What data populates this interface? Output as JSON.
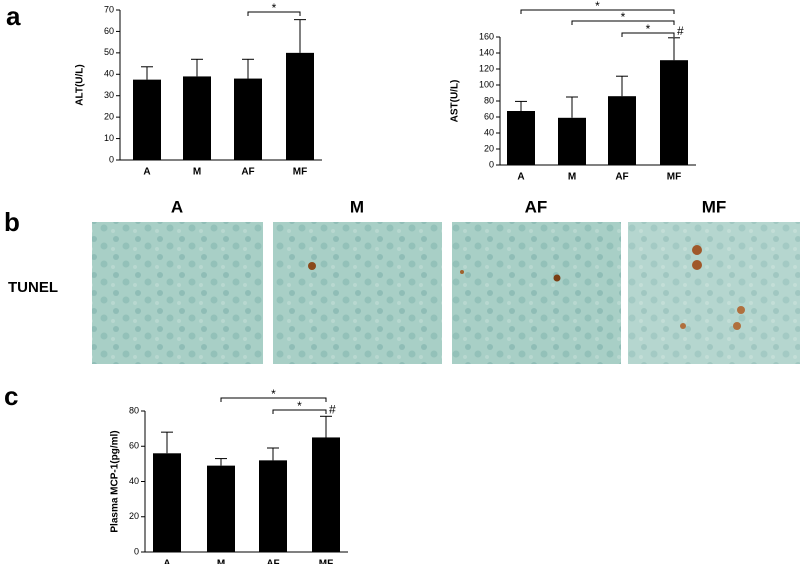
{
  "panels": [
    "a",
    "b",
    "c"
  ],
  "tunel_label": "TUNEL",
  "image_titles": [
    "A",
    "M",
    "AF",
    "MF"
  ],
  "chart_data": [
    {
      "type": "bar",
      "ylabel": "ALT(U/L)",
      "categories": [
        "A",
        "M",
        "AF",
        "MF"
      ],
      "values": [
        37.5,
        39,
        38,
        50
      ],
      "errors": [
        6,
        8,
        9,
        15.5
      ],
      "color": "#000000",
      "ylim": [
        0,
        70
      ],
      "yticks": [
        0,
        10,
        20,
        30,
        40,
        50,
        60,
        70
      ],
      "annotations": [
        "*"
      ]
    },
    {
      "type": "bar",
      "ylabel": "AST(U/L)",
      "categories": [
        "A",
        "M",
        "AF",
        "MF"
      ],
      "values": [
        67.5,
        59,
        86,
        131
      ],
      "errors": [
        12,
        26,
        25,
        28
      ],
      "color": "#000000",
      "ylim": [
        0,
        160
      ],
      "yticks": [
        0,
        20,
        40,
        60,
        80,
        100,
        120,
        140,
        160
      ],
      "annotations": [
        "*",
        "*",
        "*",
        "#"
      ]
    },
    {
      "type": "bar",
      "ylabel": "Plasma MCP-1(pg/ml)",
      "categories": [
        "A",
        "M",
        "AF",
        "MF"
      ],
      "values": [
        56,
        49,
        52,
        65
      ],
      "errors": [
        12,
        4,
        7,
        12
      ],
      "color": "#000000",
      "ylim": [
        0,
        80
      ],
      "yticks": [
        0,
        20,
        40,
        60,
        80
      ],
      "annotations": [
        "*",
        "*",
        "#"
      ]
    }
  ]
}
